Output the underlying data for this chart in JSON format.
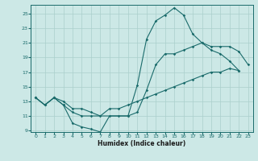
{
  "xlabel": "Humidex (Indice chaleur)",
  "background_color": "#cce8e6",
  "grid_color": "#aacfcc",
  "line_color": "#1a6b6b",
  "xlim": [
    -0.5,
    23.5
  ],
  "ylim": [
    8.8,
    26.2
  ],
  "yticks": [
    9,
    11,
    13,
    15,
    17,
    19,
    21,
    23,
    25
  ],
  "xticks": [
    0,
    1,
    2,
    3,
    4,
    5,
    6,
    7,
    8,
    9,
    10,
    11,
    12,
    13,
    14,
    15,
    16,
    17,
    18,
    19,
    20,
    21,
    22,
    23
  ],
  "line1": {
    "x": [
      0,
      1,
      2,
      3,
      4,
      5,
      6,
      7,
      8,
      9,
      10,
      11,
      12,
      13,
      14,
      15,
      16,
      17,
      18,
      19,
      20,
      21,
      22
    ],
    "y": [
      13.5,
      12.5,
      13.5,
      12.5,
      10.0,
      9.5,
      9.2,
      8.8,
      11.0,
      11.0,
      11.0,
      15.2,
      21.5,
      24.0,
      24.8,
      25.8,
      24.8,
      22.2,
      21.0,
      20.0,
      19.5,
      18.5,
      17.2
    ]
  },
  "line2": {
    "x": [
      0,
      1,
      2,
      3,
      4,
      5,
      6,
      10,
      11,
      12,
      13,
      14,
      15,
      16,
      17,
      18,
      19,
      20,
      21,
      22,
      23
    ],
    "y": [
      13.5,
      12.5,
      13.5,
      12.5,
      11.5,
      11.0,
      11.0,
      11.0,
      11.5,
      14.5,
      18.0,
      19.5,
      19.5,
      20.0,
      20.5,
      21.0,
      20.5,
      20.5,
      20.5,
      19.8,
      18.0
    ]
  },
  "line3": {
    "x": [
      0,
      1,
      2,
      3,
      4,
      5,
      6,
      7,
      8,
      9,
      10,
      11,
      12,
      13,
      14,
      15,
      16,
      17,
      18,
      19,
      20,
      21,
      22
    ],
    "y": [
      13.5,
      12.5,
      13.5,
      13.0,
      12.0,
      12.0,
      11.5,
      11.0,
      12.0,
      12.0,
      12.5,
      13.0,
      13.5,
      14.0,
      14.5,
      15.0,
      15.5,
      16.0,
      16.5,
      17.0,
      17.0,
      17.5,
      17.2
    ]
  },
  "xlabel_fontsize": 5.5,
  "tick_fontsize": 4.5,
  "marker_size": 1.8,
  "line_width": 0.8
}
